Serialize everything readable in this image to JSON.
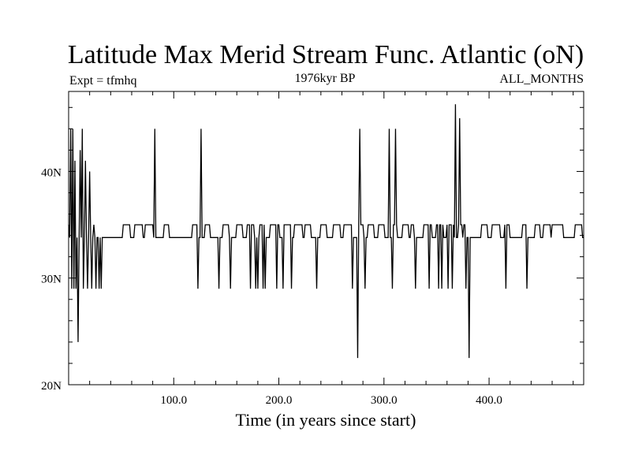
{
  "chart_data": {
    "type": "line",
    "title": "Latitude Max Merid Stream Func. Atlantic (oN)",
    "subtitle_left": "Expt = tfmhq",
    "subtitle_center": "1976kyr BP",
    "subtitle_right": "ALL_MONTHS",
    "xlabel": "Time (in years since start)",
    "ylabel": "",
    "xlim": [
      0,
      490
    ],
    "ylim": [
      20,
      47.5
    ],
    "x_ticks": [
      100,
      200,
      300,
      400
    ],
    "x_tick_labels": [
      "100.0",
      "200.0",
      "300.0",
      "400.0"
    ],
    "y_ticks": [
      20,
      30,
      40
    ],
    "y_tick_labels": [
      "20N",
      "30N",
      "40N"
    ],
    "grid": false,
    "baseline": 33.8,
    "upper_level": 35,
    "upper_plateaus": [
      [
        52,
        58
      ],
      [
        63,
        70
      ],
      [
        73,
        80
      ],
      [
        91,
        95
      ],
      [
        118,
        122
      ],
      [
        130,
        134
      ],
      [
        147,
        152
      ],
      [
        160,
        165
      ],
      [
        170,
        176
      ],
      [
        182,
        186
      ],
      [
        192,
        200
      ],
      [
        205,
        212
      ],
      [
        215,
        222
      ],
      [
        225,
        230
      ],
      [
        240,
        245
      ],
      [
        252,
        258
      ],
      [
        262,
        270
      ],
      [
        275,
        280
      ],
      [
        285,
        290
      ],
      [
        295,
        300
      ],
      [
        308,
        312
      ],
      [
        318,
        323
      ],
      [
        326,
        328
      ],
      [
        338,
        345
      ],
      [
        350,
        356
      ],
      [
        360,
        366
      ],
      [
        371,
        374
      ],
      [
        376,
        378
      ],
      [
        393,
        398
      ],
      [
        403,
        410
      ],
      [
        415,
        419
      ],
      [
        432,
        436
      ],
      [
        444,
        448
      ],
      [
        452,
        458
      ],
      [
        460,
        470
      ],
      [
        482,
        488
      ]
    ],
    "downward_spikes": [
      [
        3,
        29
      ],
      [
        5,
        29
      ],
      [
        7,
        29
      ],
      [
        9,
        24
      ],
      [
        14,
        29
      ],
      [
        18,
        29
      ],
      [
        22,
        29
      ],
      [
        26,
        29
      ],
      [
        29,
        29
      ],
      [
        31,
        29
      ],
      [
        123,
        29
      ],
      [
        143,
        29
      ],
      [
        154,
        29
      ],
      [
        173,
        29
      ],
      [
        178,
        29
      ],
      [
        180,
        29
      ],
      [
        185,
        29
      ],
      [
        187,
        29
      ],
      [
        198,
        29
      ],
      [
        204,
        29
      ],
      [
        212,
        29
      ],
      [
        236,
        29
      ],
      [
        270,
        29
      ],
      [
        275,
        22.5
      ],
      [
        282,
        29
      ],
      [
        308,
        29
      ],
      [
        330,
        29
      ],
      [
        343,
        29
      ],
      [
        352,
        29
      ],
      [
        355,
        29
      ],
      [
        361,
        29
      ],
      [
        365,
        29
      ],
      [
        378,
        29
      ],
      [
        381,
        22.5
      ],
      [
        416,
        29
      ],
      [
        436,
        29
      ]
    ],
    "upward_spikes": [
      [
        2,
        44
      ],
      [
        4,
        44
      ],
      [
        6,
        41
      ],
      [
        11,
        42
      ],
      [
        13,
        44
      ],
      [
        16,
        41
      ],
      [
        20,
        40
      ],
      [
        24,
        35
      ],
      [
        82,
        44
      ],
      [
        126,
        44
      ],
      [
        277,
        44
      ],
      [
        305,
        44
      ],
      [
        311,
        44
      ],
      [
        368,
        46.3
      ],
      [
        372,
        45
      ]
    ],
    "series": [
      {
        "values": []
      }
    ]
  }
}
